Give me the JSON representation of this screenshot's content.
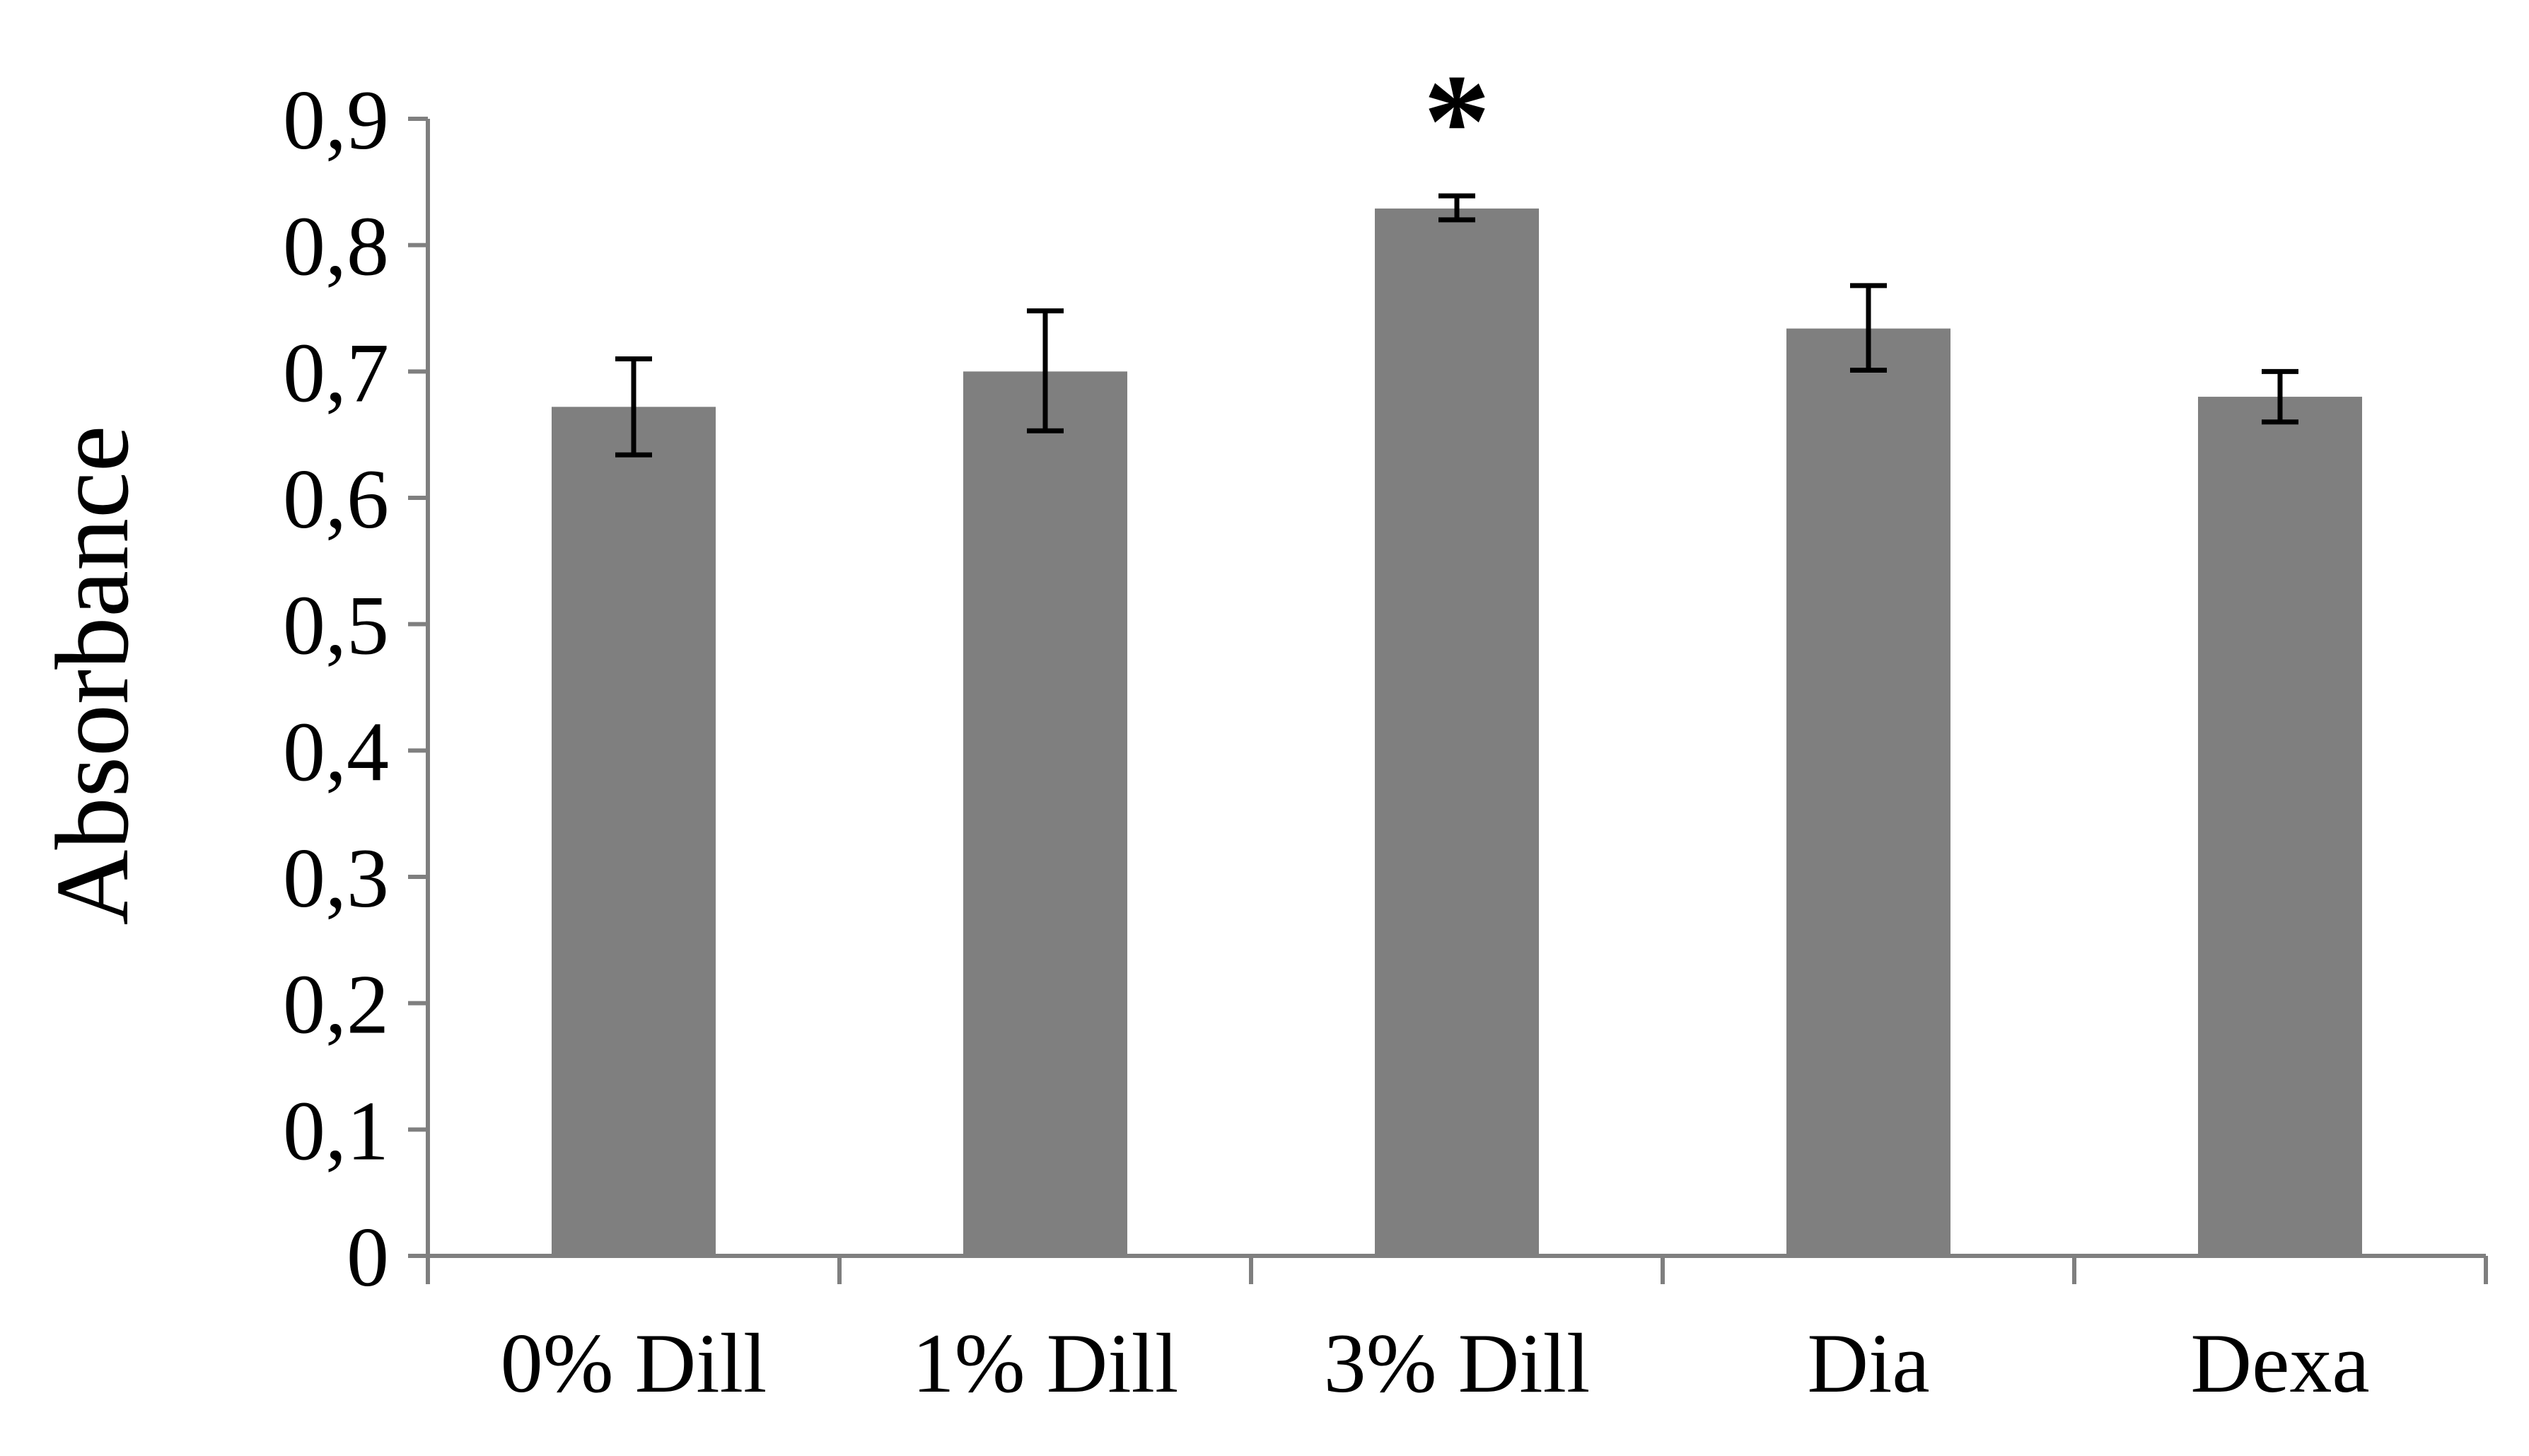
{
  "chart_data": {
    "type": "bar",
    "title": "",
    "xlabel": "",
    "ylabel": "Absorbance",
    "ylim": [
      0,
      0.9
    ],
    "yticks": [
      0,
      0.1,
      0.2,
      0.3,
      0.4,
      0.5,
      0.6,
      0.7,
      0.8,
      0.9
    ],
    "ytick_labels": [
      "0",
      "0,1",
      "0,2",
      "0,3",
      "0,4",
      "0,5",
      "0,6",
      "0,7",
      "0,8",
      "0,9"
    ],
    "categories": [
      "0% Dill",
      "1% Dill",
      "3% Dill",
      "Dia",
      "Dexa"
    ],
    "values": [
      0.672,
      0.7,
      0.829,
      0.734,
      0.68
    ],
    "error_low": [
      0.634,
      0.653,
      0.82,
      0.701,
      0.66
    ],
    "error_high": [
      0.71,
      0.748,
      0.839,
      0.768,
      0.7
    ],
    "annotations": [
      {
        "category": "3% Dill",
        "text": "*"
      }
    ],
    "grid": false,
    "legend": "none"
  },
  "colors": {
    "bar": "#7f7f7f",
    "axis": "#7f7f7f",
    "error_bar": "#000000",
    "text": "#000000"
  }
}
